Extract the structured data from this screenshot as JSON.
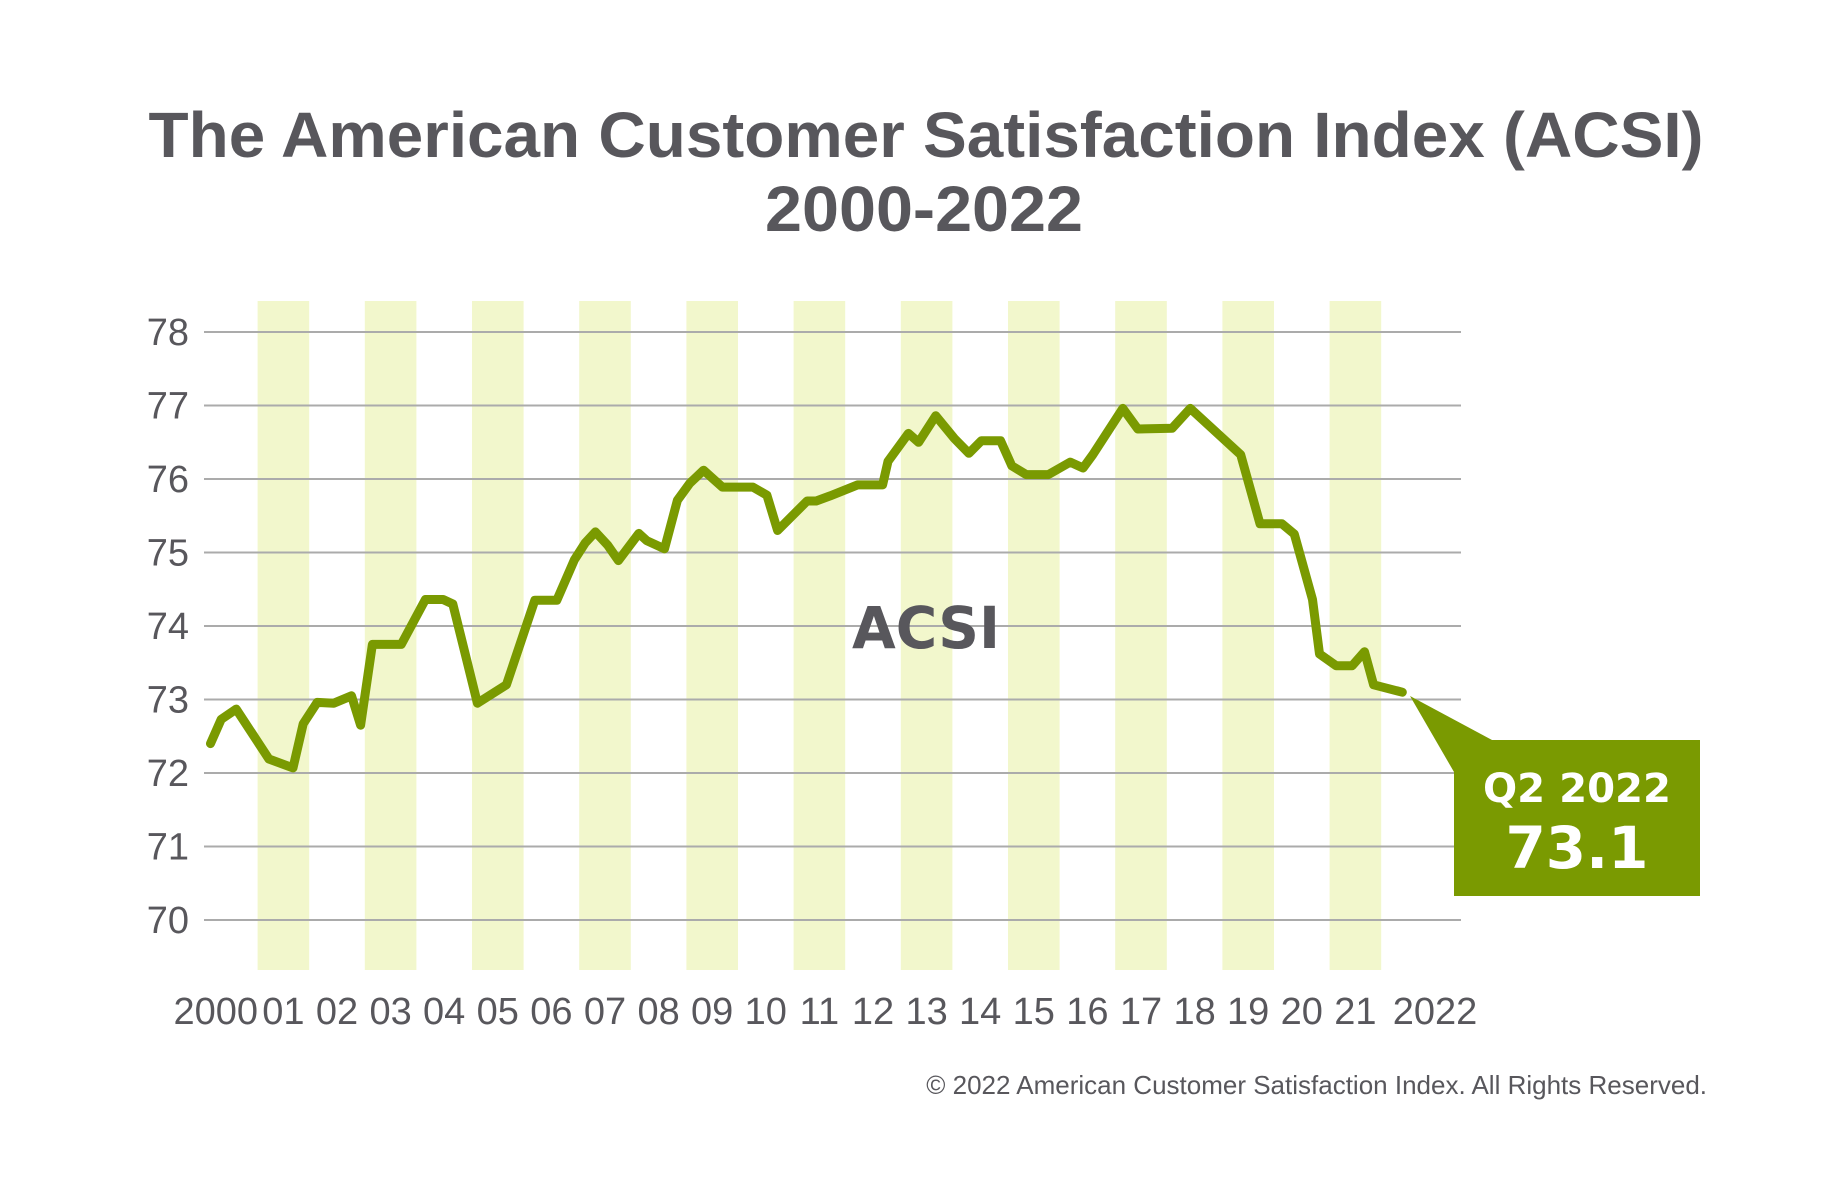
{
  "chart_data": {
    "type": "line",
    "title": "The American Customer Satisfaction Index (ACSI)",
    "subtitle": "2000-2022",
    "xlabel": "",
    "ylabel": "",
    "xlim": [
      2000,
      2023
    ],
    "ylim": [
      70,
      78
    ],
    "y_ticks": [
      70,
      71,
      72,
      73,
      74,
      75,
      76,
      77,
      78
    ],
    "x_tick_labels": [
      "2000",
      "01",
      "02",
      "03",
      "04",
      "05",
      "06",
      "07",
      "08",
      "09",
      "10",
      "11",
      "12",
      "13",
      "14",
      "15",
      "16",
      "17",
      "18",
      "19",
      "20",
      "21",
      "2022"
    ],
    "grid": "horizontal",
    "shaded_years": [
      2001,
      2003,
      2005,
      2007,
      2009,
      2011,
      2013,
      2015,
      2017,
      2019,
      2021
    ],
    "series": [
      {
        "name": "ACSI",
        "color": "#7a9a01",
        "x": [
          2000.14,
          2000.34,
          2000.62,
          2001.23,
          2001.68,
          2001.87,
          2002.13,
          2002.44,
          2002.77,
          2002.94,
          2003.16,
          2003.7,
          2004.15,
          2004.48,
          2004.66,
          2004.85,
          2005.12,
          2005.66,
          2006.19,
          2006.6,
          2006.93,
          2007.13,
          2007.32,
          2007.55,
          2007.75,
          2008.13,
          2008.28,
          2008.61,
          2008.85,
          2009.08,
          2009.34,
          2009.52,
          2009.69,
          2010.26,
          2010.52,
          2010.72,
          2011.27,
          2011.44,
          2011.7,
          2012.21,
          2012.68,
          2012.78,
          2013.16,
          2013.35,
          2013.67,
          2014.02,
          2014.29,
          2014.52,
          2014.88,
          2015.09,
          2015.36,
          2015.77,
          2016.18,
          2016.42,
          2016.6,
          2017.16,
          2017.44,
          2018.08,
          2018.42,
          2019.36,
          2019.72,
          2020.13,
          2020.36,
          2020.7,
          2020.83,
          2021.14,
          2021.44,
          2021.67,
          2021.84,
          2022.375
        ],
        "y": [
          72.4,
          72.73,
          72.87,
          72.19,
          72.07,
          72.67,
          72.96,
          72.95,
          73.05,
          72.65,
          73.75,
          73.75,
          74.36,
          74.36,
          74.3,
          73.74,
          72.95,
          73.2,
          74.35,
          74.35,
          74.9,
          75.13,
          75.28,
          75.1,
          74.89,
          75.26,
          75.16,
          75.05,
          75.71,
          75.94,
          76.12,
          76.0,
          75.89,
          75.89,
          75.78,
          75.3,
          75.7,
          75.7,
          75.77,
          75.92,
          75.92,
          76.24,
          76.62,
          76.5,
          76.86,
          76.55,
          76.35,
          76.52,
          76.52,
          76.18,
          76.06,
          76.06,
          76.23,
          76.15,
          76.33,
          76.96,
          76.68,
          76.69,
          76.96,
          76.33,
          75.39,
          75.39,
          75.25,
          74.36,
          73.62,
          73.46,
          73.46,
          73.65,
          73.2,
          73.1
        ]
      }
    ],
    "annotation": {
      "period": "Q2 2022",
      "value": "73.1",
      "color": "#7a9a01"
    },
    "colors": {
      "line": "#7a9a01",
      "band": "#f2f7cc",
      "grid": "#ababab",
      "text": "#58575c"
    }
  },
  "footer": "© 2022 American Customer Satisfaction Index. All Rights Reserved."
}
